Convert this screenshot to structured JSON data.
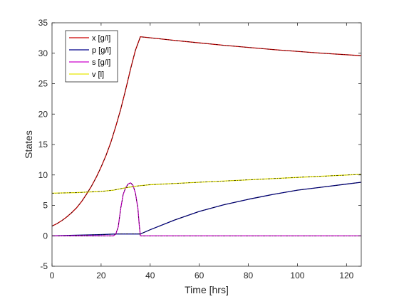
{
  "chart_data": {
    "type": "line",
    "title": "",
    "xlabel": "Time [hrs]",
    "ylabel": "States",
    "xlim": [
      0,
      126
    ],
    "ylim": [
      -5,
      35
    ],
    "xticks": [
      0,
      20,
      40,
      60,
      80,
      100,
      120
    ],
    "yticks": [
      -5,
      0,
      5,
      10,
      15,
      20,
      25,
      30,
      35
    ],
    "grid": false,
    "legend_position": "top-left",
    "series": [
      {
        "name": "x [g/l]",
        "color": "#cc0000",
        "overlay_color": "#000000",
        "points": [
          [
            0,
            1.6
          ],
          [
            2,
            2.0
          ],
          [
            4,
            2.5
          ],
          [
            6,
            3.1
          ],
          [
            8,
            3.8
          ],
          [
            10,
            4.6
          ],
          [
            12,
            5.6
          ],
          [
            14,
            6.8
          ],
          [
            16,
            8.1
          ],
          [
            18,
            9.6
          ],
          [
            20,
            11.3
          ],
          [
            22,
            13.2
          ],
          [
            24,
            15.4
          ],
          [
            26,
            18.0
          ],
          [
            28,
            20.8
          ],
          [
            30,
            24.0
          ],
          [
            32,
            27.4
          ],
          [
            34,
            30.5
          ],
          [
            36,
            32.7
          ],
          [
            50,
            32.1
          ],
          [
            70,
            31.3
          ],
          [
            90,
            30.6
          ],
          [
            110,
            30.0
          ],
          [
            126,
            29.6
          ]
        ]
      },
      {
        "name": "p [g/l]",
        "color": "#00008b",
        "overlay_color": "#000000",
        "points": [
          [
            0,
            0.0
          ],
          [
            10,
            0.1
          ],
          [
            20,
            0.2
          ],
          [
            26,
            0.3
          ],
          [
            36,
            0.3
          ],
          [
            40,
            1.0
          ],
          [
            50,
            2.6
          ],
          [
            60,
            4.0
          ],
          [
            70,
            5.1
          ],
          [
            80,
            6.0
          ],
          [
            90,
            6.8
          ],
          [
            100,
            7.5
          ],
          [
            110,
            8.0
          ],
          [
            120,
            8.5
          ],
          [
            126,
            8.8
          ]
        ]
      },
      {
        "name": "s [g/l]",
        "color": "#cc00cc",
        "overlay_color": "#000000",
        "points": [
          [
            0,
            0.0
          ],
          [
            25,
            0.0
          ],
          [
            26,
            0.3
          ],
          [
            27,
            1.5
          ],
          [
            28,
            4.5
          ],
          [
            29,
            6.8
          ],
          [
            30,
            7.9
          ],
          [
            31,
            8.5
          ],
          [
            32,
            8.7
          ],
          [
            33,
            8.3
          ],
          [
            34,
            7.0
          ],
          [
            35,
            4.5
          ],
          [
            35.5,
            2.0
          ],
          [
            36,
            0.0
          ],
          [
            126,
            0.0
          ]
        ]
      },
      {
        "name": "v [l]",
        "color": "#e6e600",
        "overlay_color": "#000000",
        "points": [
          [
            0,
            7.0
          ],
          [
            10,
            7.1
          ],
          [
            20,
            7.3
          ],
          [
            25,
            7.5
          ],
          [
            30,
            7.9
          ],
          [
            35,
            8.2
          ],
          [
            40,
            8.4
          ],
          [
            60,
            8.8
          ],
          [
            80,
            9.2
          ],
          [
            100,
            9.6
          ],
          [
            126,
            10.1
          ]
        ]
      }
    ]
  }
}
